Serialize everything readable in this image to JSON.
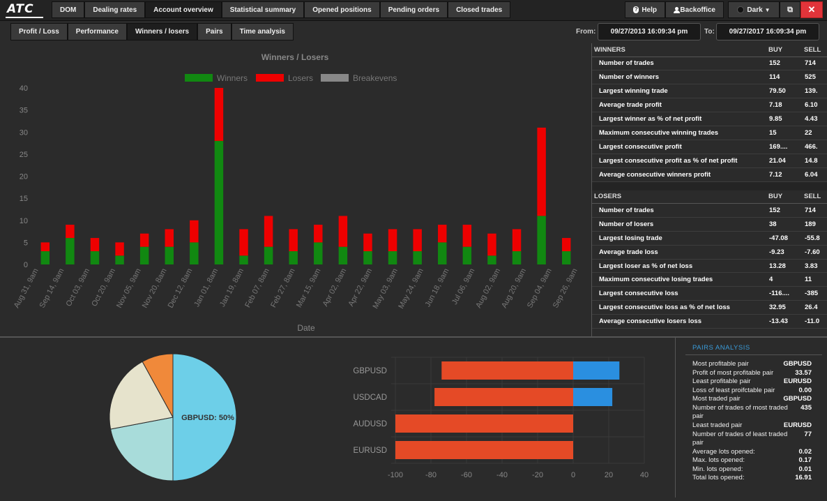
{
  "app": {
    "logo": "ATC"
  },
  "topnav": [
    {
      "label": "DOM",
      "active": false
    },
    {
      "label": "Dealing rates",
      "active": false
    },
    {
      "label": "Account overview",
      "active": true
    },
    {
      "label": "Statistical summary",
      "active": false
    },
    {
      "label": "Opened positions",
      "active": false
    },
    {
      "label": "Pending orders",
      "active": false
    },
    {
      "label": "Closed trades",
      "active": false
    }
  ],
  "topright": {
    "help": "Help",
    "backoffice": "Backoffice",
    "theme": "Dark"
  },
  "subnav": [
    {
      "label": "Profit / Loss",
      "active": false
    },
    {
      "label": "Performance",
      "active": false
    },
    {
      "label": "Winners / losers",
      "active": true
    },
    {
      "label": "Pairs",
      "active": false
    },
    {
      "label": "Time analysis",
      "active": false
    }
  ],
  "range": {
    "from_label": "From:",
    "from_value": "09/27/2013 16:09:34 pm",
    "to_label": "To:",
    "to_value": "09/27/2017 16:09:34 pm"
  },
  "winners_losers_chart": {
    "title": "Winners / Losers",
    "xlabel": "Date",
    "legend": [
      {
        "name": "Winners",
        "color": "#118811"
      },
      {
        "name": "Losers",
        "color": "#ee0000"
      },
      {
        "name": "Breakevens",
        "color": "#888888"
      }
    ],
    "yticks": [
      "0",
      "5",
      "10",
      "15",
      "20",
      "25",
      "30",
      "35",
      "40"
    ],
    "xticks": [
      "Aug 31, 9am",
      "Sep 14, 9am",
      "Oct 03, 9am",
      "Oct 20, 9am",
      "Nov 05, 9am",
      "Nov 20, 8am",
      "Dec 12, 8am",
      "Jan 01, 8am",
      "Jan 19, 8am",
      "Feb 07, 8am",
      "Feb 27, 8am",
      "Mar 15, 9am",
      "Apr 02, 9am",
      "Apr 22, 9am",
      "May 03, 9am",
      "May 24, 9am",
      "Jun 18, 9am",
      "Jul 06, 9am",
      "Aug 02, 9am",
      "Aug 20, 9am",
      "Sep 04, 9am",
      "Sep 26, 9am"
    ]
  },
  "winners_table": {
    "header": [
      "WINNERS",
      "BUY",
      "SELL"
    ],
    "rows": [
      [
        "Number of trades",
        "152",
        "714"
      ],
      [
        "Number of winners",
        "114",
        "525"
      ],
      [
        "Largest winning trade",
        "79.50",
        "139."
      ],
      [
        "Average trade profit",
        "7.18",
        "6.10"
      ],
      [
        "Largest winner as % of net profit",
        "9.85",
        "4.43"
      ],
      [
        "Maximum consecutive winning trades",
        "15",
        "22"
      ],
      [
        "Largest consecutive profit",
        "169....",
        "466."
      ],
      [
        "Largest consecutive profit as % of net profit",
        "21.04",
        "14.8"
      ],
      [
        "Average consecutive winners profit",
        "7.12",
        "6.04"
      ]
    ]
  },
  "losers_table": {
    "header": [
      "LOSERS",
      "BUY",
      "SELL"
    ],
    "rows": [
      [
        "Number of trades",
        "152",
        "714"
      ],
      [
        "Number of losers",
        "38",
        "189"
      ],
      [
        "Largest losing trade",
        "-47.08",
        "-55.8"
      ],
      [
        "Average trade loss",
        "-9.23",
        "-7.60"
      ],
      [
        "Largest loser as % of net loss",
        "13.28",
        "3.83"
      ],
      [
        "Maximum consecutive losing trades",
        "4",
        "11"
      ],
      [
        "Largest consecutive loss",
        "-116....",
        "-385"
      ],
      [
        "Largest consecutive loss as % of net loss",
        "32.95",
        "26.4"
      ],
      [
        "Average consecutive losers loss",
        "-13.43",
        "-11.0"
      ]
    ]
  },
  "pie": {
    "label": "GBPUSD: 50%"
  },
  "pairs_analysis": {
    "title": "PAIRS ANALYSIS",
    "rows": [
      {
        "label": "Most profitable pair",
        "value": "GBPUSD"
      },
      {
        "label": "Profit of most profitable pair",
        "value": "33.57"
      },
      {
        "label": "Least profitable pair",
        "value": "EURUSD"
      },
      {
        "label": "Loss of least proifctable pair",
        "value": "0.00"
      },
      {
        "label": "Most traded pair",
        "value": "GBPUSD"
      },
      {
        "label": "Number of trades of most traded pair",
        "value": "435"
      },
      {
        "label": "Least traded pair",
        "value": "EURUSD"
      },
      {
        "label": "Number of trades of least traded pair",
        "value": "77"
      },
      {
        "label": "Average lots opened:",
        "value": "0.02"
      },
      {
        "label": "Max. lots opened:",
        "value": "0.17"
      },
      {
        "label": "Min. lots opened:",
        "value": "0.01"
      },
      {
        "label": "Total lots opened:",
        "value": "16.91"
      }
    ]
  },
  "chart_data": [
    {
      "type": "bar",
      "title": "Winners / Losers",
      "xlabel": "Date",
      "ylabel": "",
      "ylim": [
        0,
        40
      ],
      "stacked": true,
      "categories": [
        "Aug 31, 9am",
        "Sep 14, 9am",
        "Oct 03, 9am",
        "Oct 20, 9am",
        "Nov 05, 9am",
        "Nov 20, 8am",
        "Dec 12, 8am",
        "Jan 01, 8am",
        "Jan 19, 8am",
        "Feb 07, 8am",
        "Feb 27, 8am",
        "Mar 15, 9am",
        "Apr 02, 9am",
        "Apr 22, 9am",
        "May 03, 9am",
        "May 24, 9am",
        "Jun 18, 9am",
        "Jul 06, 9am",
        "Aug 02, 9am",
        "Aug 20, 9am",
        "Sep 04, 9am",
        "Sep 26, 9am"
      ],
      "series": [
        {
          "name": "Winners",
          "color": "#118811",
          "values": [
            3,
            6,
            3,
            2,
            4,
            4,
            5,
            28,
            2,
            4,
            3,
            5,
            4,
            3,
            3,
            3,
            5,
            4,
            2,
            3,
            11,
            3
          ]
        },
        {
          "name": "Losers",
          "color": "#ee0000",
          "values": [
            2,
            3,
            3,
            3,
            3,
            4,
            5,
            12,
            6,
            7,
            5,
            4,
            7,
            4,
            5,
            5,
            4,
            5,
            5,
            5,
            20,
            3
          ]
        },
        {
          "name": "Breakevens",
          "color": "#888888",
          "values": [
            0,
            0,
            0,
            0,
            0,
            0,
            0,
            0,
            0,
            0,
            0,
            0,
            0,
            0,
            0,
            0,
            0,
            0,
            0,
            0,
            0,
            0
          ]
        }
      ]
    },
    {
      "type": "pie",
      "slices": [
        {
          "label": "GBPUSD",
          "value": 50,
          "color": "#6dcfe8"
        },
        {
          "label": "USDCAD",
          "value": 22,
          "color": "#a8dcda"
        },
        {
          "label": "AUDUSD",
          "value": 20,
          "color": "#e6e3cc"
        },
        {
          "label": "EURUSD",
          "value": 8,
          "color": "#f0893a"
        }
      ]
    },
    {
      "type": "bar",
      "orientation": "horizontal",
      "categories": [
        "GBPUSD",
        "USDCAD",
        "AUDUSD",
        "EURUSD"
      ],
      "xlim": [
        -100,
        40
      ],
      "xticks": [
        "-100",
        "-80",
        "-60",
        "-40",
        "-20",
        "0",
        "20",
        "40"
      ],
      "series": [
        {
          "name": "Losses",
          "color": "#e54a26",
          "values": [
            -74,
            -78,
            -100,
            -100
          ]
        },
        {
          "name": "Profits",
          "color": "#2a8fe0",
          "values": [
            26,
            22,
            0,
            0
          ]
        }
      ]
    }
  ]
}
